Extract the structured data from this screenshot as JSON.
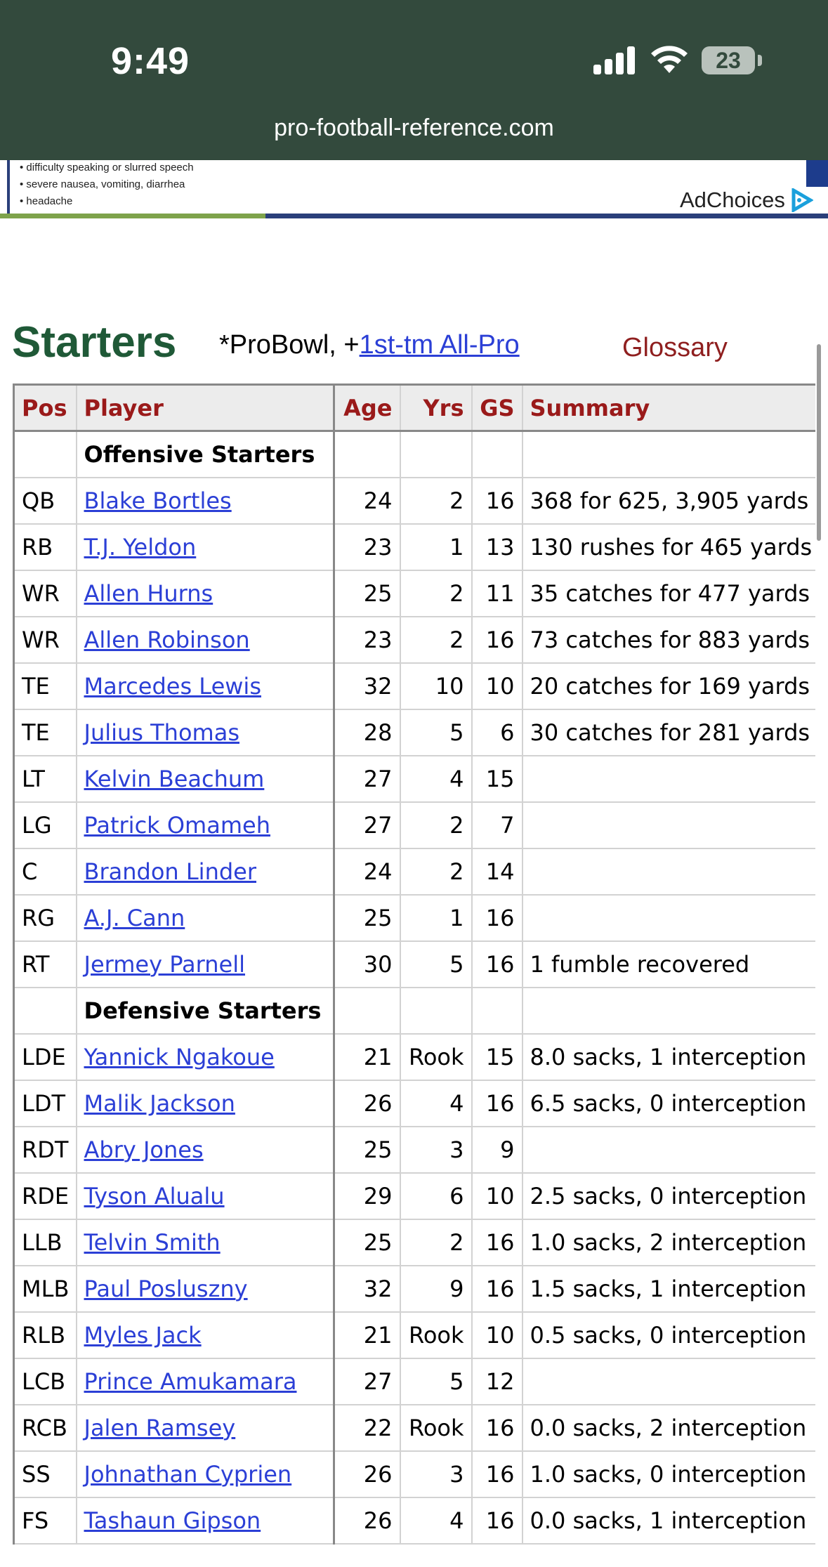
{
  "status_bar": {
    "time": "9:49",
    "battery": "23"
  },
  "browser": {
    "url": "pro-football-reference.com"
  },
  "ad": {
    "lines": [
      "• difficulty speaking or slurred speech",
      "• severe nausea, vomiting, diarrhea",
      "• headache"
    ],
    "adchoices_label": "AdChoices"
  },
  "section": {
    "title": "Starters",
    "probowl_note": "*ProBowl, +",
    "allpro_link": "1st-tm All-Pro",
    "glossary_link": "Glossary"
  },
  "table": {
    "headers": {
      "pos": "Pos",
      "player": "Player",
      "age": "Age",
      "yrs": "Yrs",
      "gs": "GS",
      "summary": "Summary"
    },
    "offense_label": "Offensive Starters",
    "defense_label": "Defensive Starters",
    "offense": [
      {
        "pos": "QB",
        "player": "Blake Bortles",
        "age": "24",
        "yrs": "2",
        "gs": "16",
        "summary": "368 for 625, 3,905 yards"
      },
      {
        "pos": "RB",
        "player": "T.J. Yeldon",
        "age": "23",
        "yrs": "1",
        "gs": "13",
        "summary": "130 rushes for 465 yards"
      },
      {
        "pos": "WR",
        "player": "Allen Hurns",
        "age": "25",
        "yrs": "2",
        "gs": "11",
        "summary": "35 catches for 477 yards"
      },
      {
        "pos": "WR",
        "player": "Allen Robinson",
        "age": "23",
        "yrs": "2",
        "gs": "16",
        "summary": "73 catches for 883 yards"
      },
      {
        "pos": "TE",
        "player": "Marcedes Lewis",
        "age": "32",
        "yrs": "10",
        "gs": "10",
        "summary": "20 catches for 169 yards"
      },
      {
        "pos": "TE",
        "player": "Julius Thomas",
        "age": "28",
        "yrs": "5",
        "gs": "6",
        "summary": "30 catches for 281 yards"
      },
      {
        "pos": "LT",
        "player": "Kelvin Beachum",
        "age": "27",
        "yrs": "4",
        "gs": "15",
        "summary": ""
      },
      {
        "pos": "LG",
        "player": "Patrick Omameh",
        "age": "27",
        "yrs": "2",
        "gs": "7",
        "summary": ""
      },
      {
        "pos": "C",
        "player": "Brandon Linder",
        "age": "24",
        "yrs": "2",
        "gs": "14",
        "summary": ""
      },
      {
        "pos": "RG",
        "player": "A.J. Cann",
        "age": "25",
        "yrs": "1",
        "gs": "16",
        "summary": ""
      },
      {
        "pos": "RT",
        "player": "Jermey Parnell",
        "age": "30",
        "yrs": "5",
        "gs": "16",
        "summary": "1 fumble recovered"
      }
    ],
    "defense": [
      {
        "pos": "LDE",
        "player": "Yannick Ngakoue",
        "age": "21",
        "yrs": "Rook",
        "gs": "15",
        "summary": "8.0 sacks, 1 interception"
      },
      {
        "pos": "LDT",
        "player": "Malik Jackson",
        "age": "26",
        "yrs": "4",
        "gs": "16",
        "summary": "6.5 sacks, 0 interception"
      },
      {
        "pos": "RDT",
        "player": "Abry Jones",
        "age": "25",
        "yrs": "3",
        "gs": "9",
        "summary": ""
      },
      {
        "pos": "RDE",
        "player": "Tyson Alualu",
        "age": "29",
        "yrs": "6",
        "gs": "10",
        "summary": "2.5 sacks, 0 interception"
      },
      {
        "pos": "LLB",
        "player": "Telvin Smith",
        "age": "25",
        "yrs": "2",
        "gs": "16",
        "summary": "1.0 sacks, 2 interception"
      },
      {
        "pos": "MLB",
        "player": "Paul Posluszny",
        "age": "32",
        "yrs": "9",
        "gs": "16",
        "summary": "1.5 sacks, 1 interception"
      },
      {
        "pos": "RLB",
        "player": "Myles Jack",
        "age": "21",
        "yrs": "Rook",
        "gs": "10",
        "summary": "0.5 sacks, 0 interception"
      },
      {
        "pos": "LCB",
        "player": "Prince Amukamara",
        "age": "27",
        "yrs": "5",
        "gs": "12",
        "summary": ""
      },
      {
        "pos": "RCB",
        "player": "Jalen Ramsey",
        "age": "22",
        "yrs": "Rook",
        "gs": "16",
        "summary": "0.0 sacks, 2 interception"
      },
      {
        "pos": "SS",
        "player": "Johnathan Cyprien",
        "age": "26",
        "yrs": "3",
        "gs": "16",
        "summary": "1.0 sacks, 0 interception"
      },
      {
        "pos": "FS",
        "player": "Tashaun Gipson",
        "age": "26",
        "yrs": "4",
        "gs": "16",
        "summary": "0.0 sacks, 1 interception"
      }
    ]
  },
  "colors": {
    "topbar": "#334a3d",
    "heading": "#1f5937",
    "link": "#2b3fd6",
    "header_text": "#9a1a1a",
    "glossary": "#8f1f1f"
  },
  "icons": {
    "signal": "cellular-signal-icon",
    "wifi": "wifi-icon",
    "battery": "battery-icon",
    "adchoices": "adchoices-icon"
  }
}
